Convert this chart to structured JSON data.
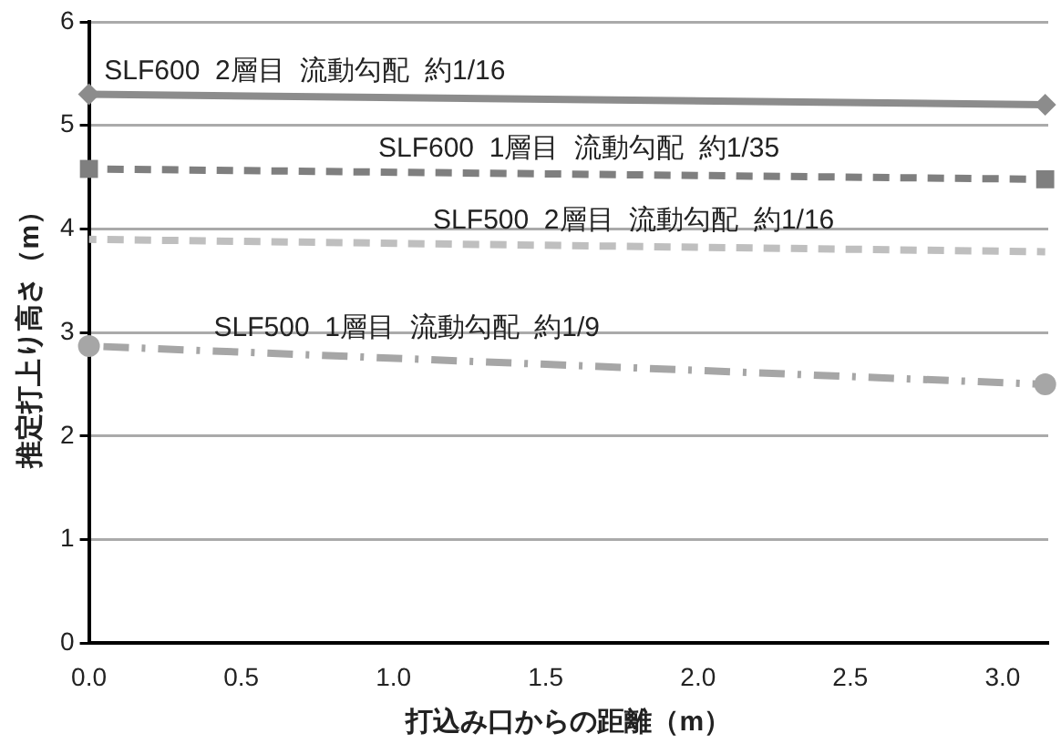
{
  "chart_data": {
    "type": "line",
    "xlabel": "打込み口からの距離（m）",
    "ylabel": "推定打上り高さ（m）",
    "xlim": [
      0,
      3.15
    ],
    "xticks": [
      {
        "value": 0,
        "label": "0.0"
      },
      {
        "value": 0.5,
        "label": "0.5"
      },
      {
        "value": 1,
        "label": "1.0"
      },
      {
        "value": 1.5,
        "label": "1.5"
      },
      {
        "value": 2,
        "label": "2.0"
      },
      {
        "value": 2.5,
        "label": "2.5"
      },
      {
        "value": 3,
        "label": "3.0"
      }
    ],
    "ylim": [
      0,
      6
    ],
    "yticks": [
      0,
      1,
      2,
      3,
      4,
      5,
      6
    ],
    "grid": "y",
    "legend": false,
    "x": [
      0,
      3.14
    ],
    "series": [
      {
        "name": "SLF600  2層目  流動勾配  約1/16",
        "color": "#8c8c8c",
        "values": [
          5.3,
          5.2
        ],
        "marker": "diamond",
        "line_style": "solid"
      },
      {
        "name": "SLF600  1層目  流動勾配  約1/35",
        "color": "#7f7f7f",
        "values": [
          4.58,
          4.48
        ],
        "marker": "square",
        "line_style": "dashed"
      },
      {
        "name": "SLF500  2層目  流動勾配  約1/16",
        "color": "#bfbfbf",
        "values": [
          3.9,
          3.78
        ],
        "marker": "none",
        "line_style": "dashed"
      },
      {
        "name": "SLF500  1層目  流動勾配  約1/9",
        "color": "#a6a6a6",
        "values": [
          2.87,
          2.5
        ],
        "marker": "circle",
        "line_style": "dashdot"
      }
    ]
  }
}
